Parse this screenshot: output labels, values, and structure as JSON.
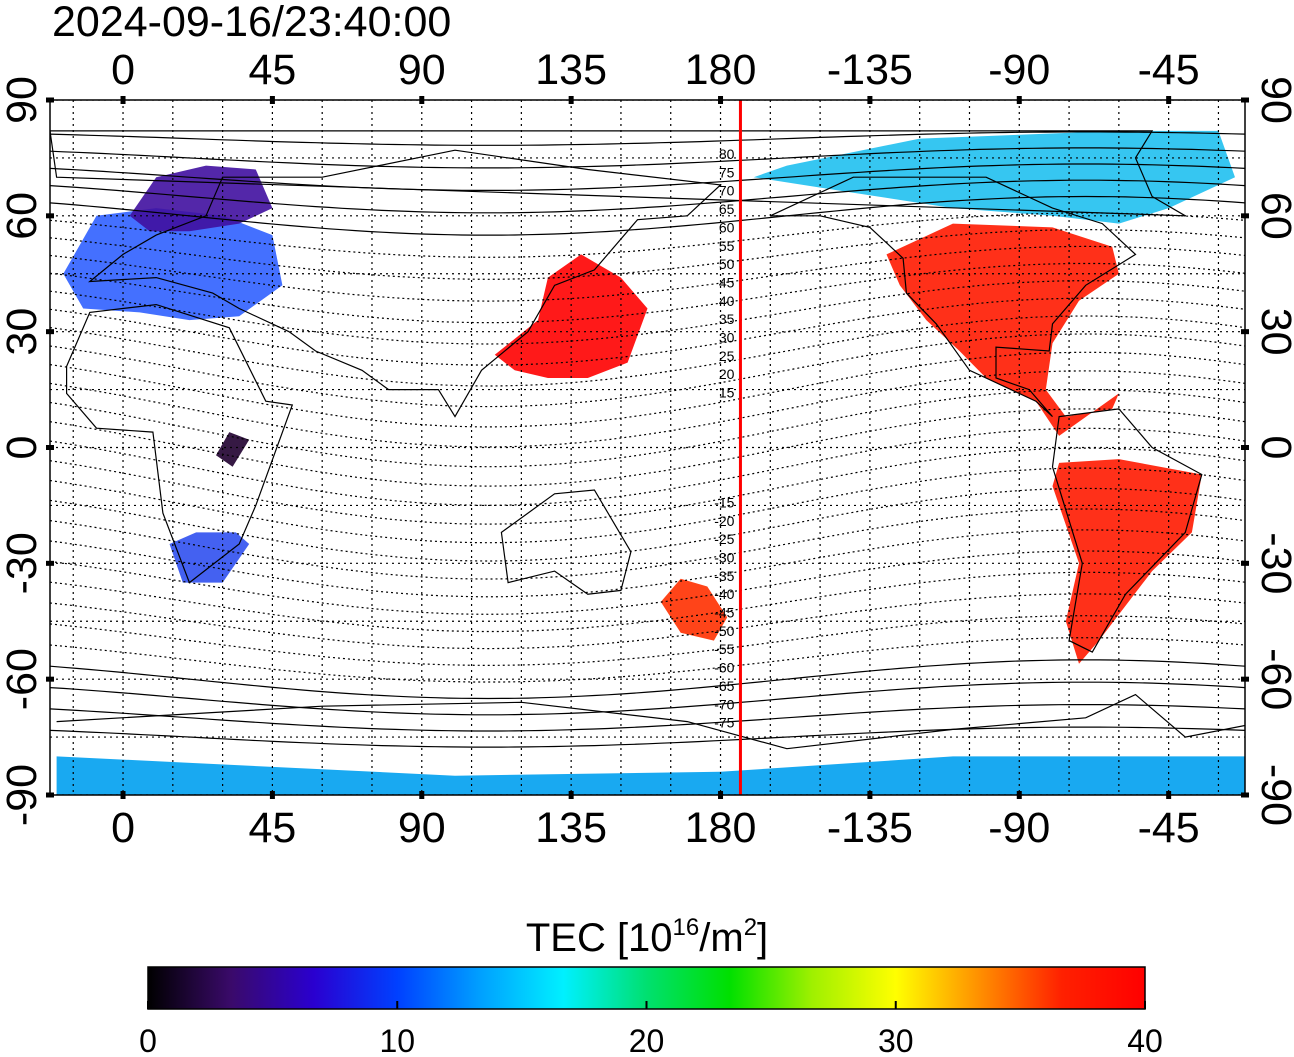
{
  "title": "2024-09-16/23:40:00",
  "lon_ticks": [
    "0",
    "45",
    "90",
    "135",
    "180",
    "-135",
    "-90",
    "-45"
  ],
  "lat_ticks": [
    "90",
    "60",
    "30",
    "0",
    "-30",
    "-60",
    "-90"
  ],
  "colorbar": {
    "label_prefix": "TEC  [10",
    "label_exp": "16",
    "label_unit": "/m",
    "label_unit_exp": "2",
    "label_suffix": "]",
    "ticks": [
      "0",
      "10",
      "20",
      "30",
      "40"
    ],
    "range": [
      0,
      40
    ],
    "colors": [
      "#000000",
      "#3a0a6a",
      "#2a00d0",
      "#0040ff",
      "#00a0ff",
      "#00f0ff",
      "#00e070",
      "#00e000",
      "#a0f000",
      "#ffff00",
      "#ff9000",
      "#ff2000",
      "#ff0000"
    ]
  },
  "map": {
    "lon_range": [
      -22,
      338
    ],
    "lat_range": [
      -90,
      90
    ],
    "grid_step_degrees": 15,
    "terminator_longitude": 186,
    "terminator_color": "#ff0000",
    "terminator_labels": [
      "80",
      "75",
      "70",
      "65",
      "60",
      "55",
      "50",
      "45",
      "40",
      "35",
      "30",
      "25",
      "20",
      "15",
      "-15",
      "-20",
      "-25",
      "-30",
      "-35",
      "-40",
      "-45",
      "-50",
      "-55",
      "-60",
      "-65",
      "-70",
      "-75"
    ]
  },
  "regions": [
    {
      "name": "north-america",
      "color": "#ff1a00"
    },
    {
      "name": "canada-arctic",
      "color": "#20c0f0"
    },
    {
      "name": "south-america",
      "color": "#ff1a00"
    },
    {
      "name": "japan-pacific",
      "color": "#ff0000"
    },
    {
      "name": "europe",
      "color": "#3060ff"
    },
    {
      "name": "scandinavia",
      "color": "#4010a0"
    },
    {
      "name": "southern-africa",
      "color": "#3050f0"
    },
    {
      "name": "central-africa",
      "color": "#200030"
    },
    {
      "name": "new-zealand",
      "color": "#ff3000"
    },
    {
      "name": "antarctica",
      "color": "#00a0f0"
    }
  ]
}
